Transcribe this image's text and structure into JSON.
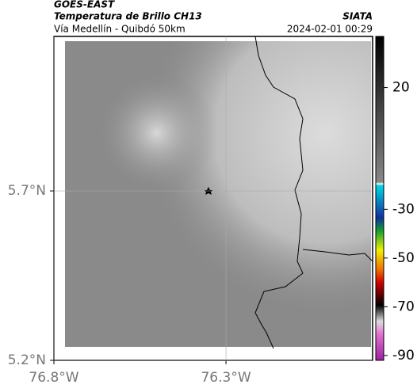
{
  "header": {
    "title": "GOES-EAST",
    "subtitle": "Temperatura de Brillo CH13",
    "location": "Vía Medellín - Quibdó 50km",
    "source": "SIATA",
    "datetime": "2024-02-01 00:29"
  },
  "map": {
    "xlim": [
      -76.8,
      -75.874
    ],
    "ylim": [
      5.2,
      6.156
    ],
    "xticks": [
      {
        "value": -76.8,
        "label": "76.8°W"
      },
      {
        "value": -76.3,
        "label": "76.3°W"
      }
    ],
    "yticks": [
      {
        "value": 5.7,
        "label": "5.7°N"
      },
      {
        "value": 5.2,
        "label": "5.2°N"
      }
    ],
    "grid": true
  },
  "colorbar": {
    "lim": [
      -92,
      41
    ],
    "ticks": [
      20,
      -30,
      -50,
      -70,
      -90
    ]
  }
}
